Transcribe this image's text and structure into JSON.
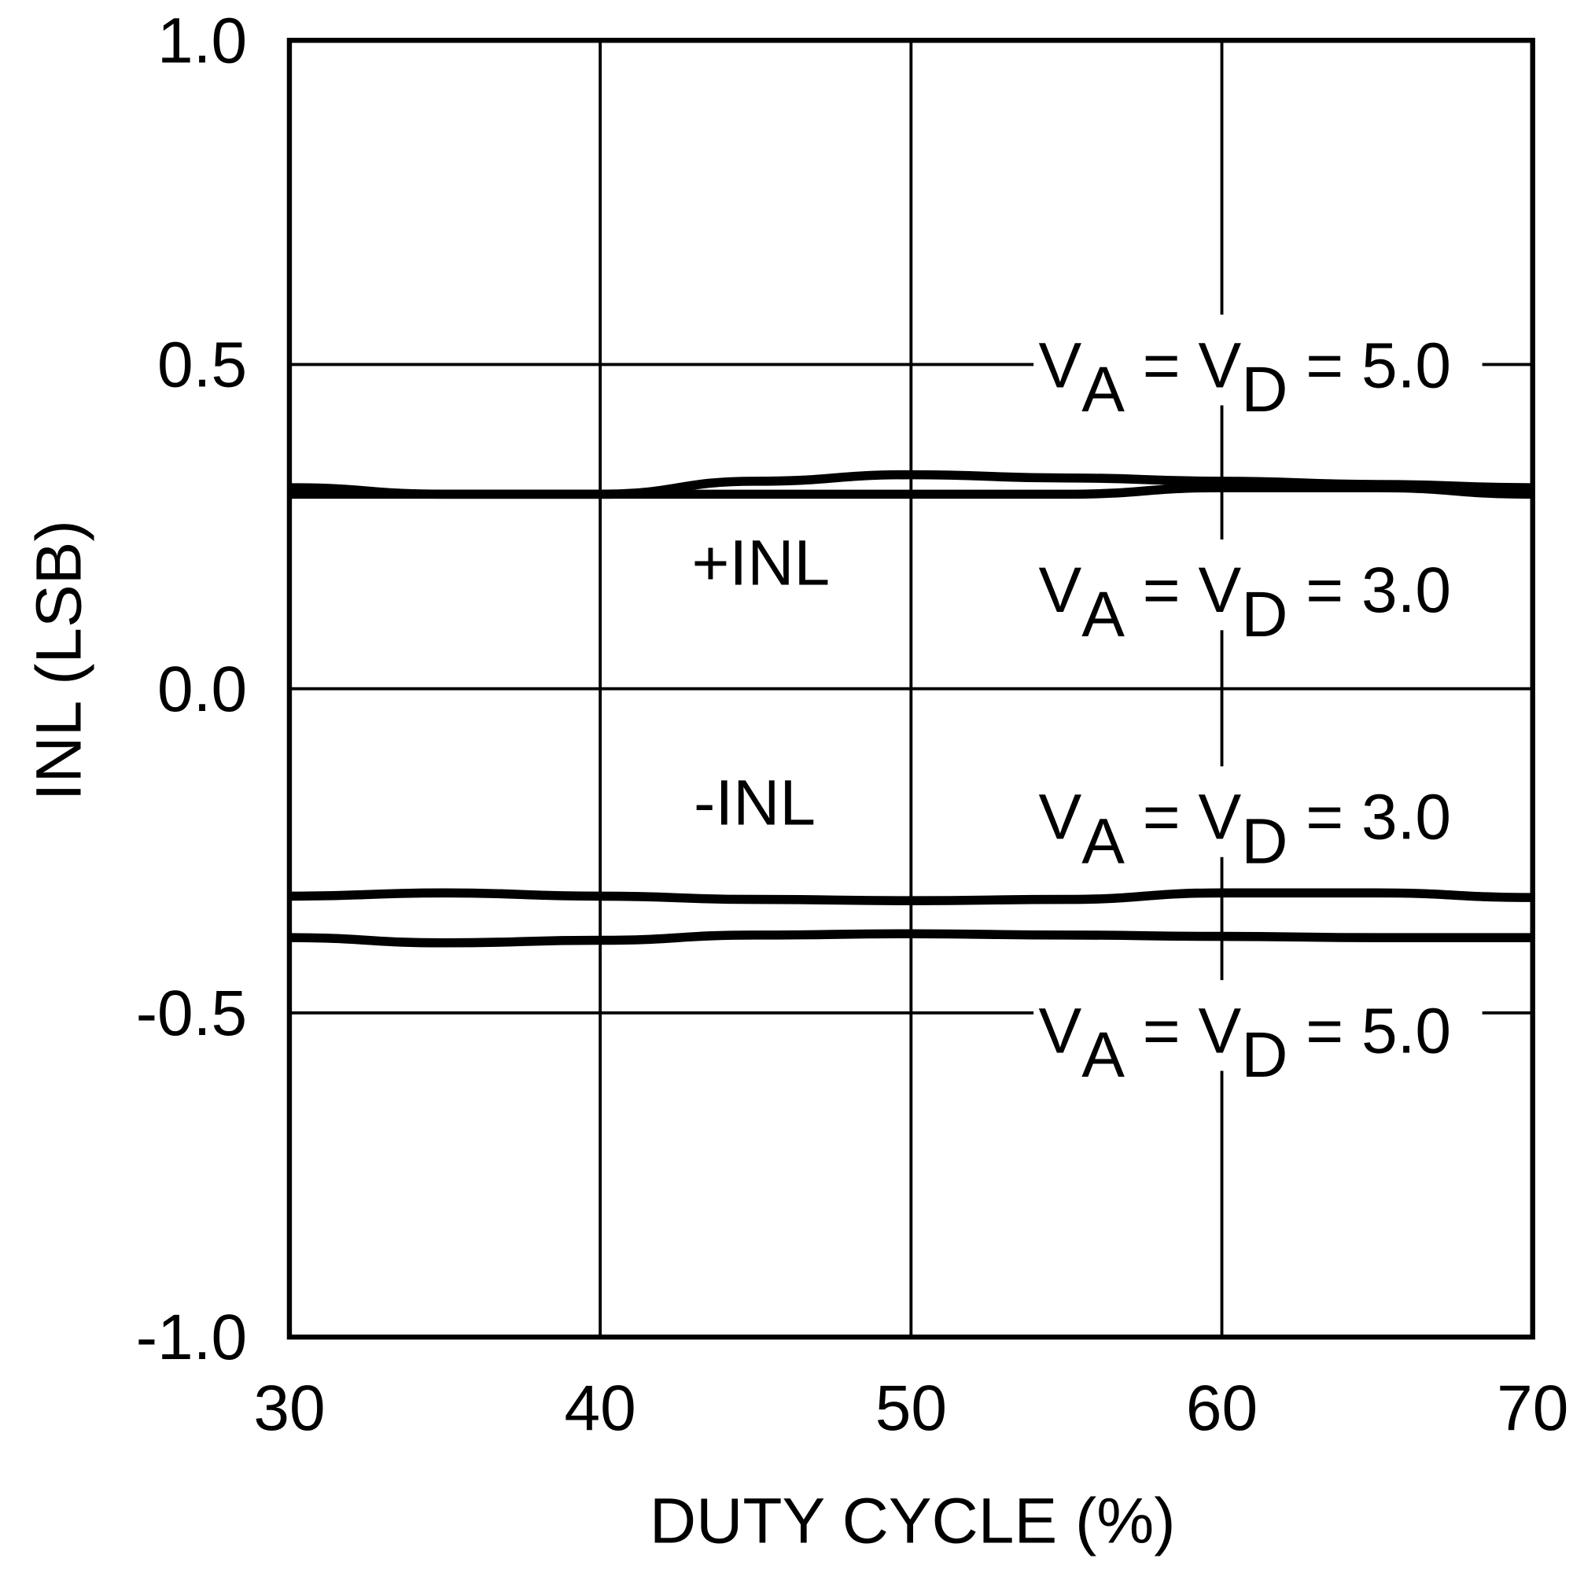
{
  "chart_data": {
    "type": "line",
    "xlabel": "DUTY CYCLE (%)",
    "ylabel": "INL (LSB)",
    "xlim": [
      30,
      70
    ],
    "ylim": [
      -1.0,
      1.0
    ],
    "xticks": [
      "30",
      "40",
      "50",
      "60",
      "70"
    ],
    "yticks": [
      "1.0",
      "0.5",
      "0.0",
      "-0.5",
      "-1.0"
    ],
    "grid": true,
    "x": [
      30,
      35,
      40,
      45,
      50,
      55,
      60,
      65,
      70
    ],
    "series": [
      {
        "name": "+INL, VA = VD = 5.0",
        "values": [
          0.31,
          0.3,
          0.3,
          0.32,
          0.33,
          0.325,
          0.32,
          0.315,
          0.31
        ]
      },
      {
        "name": "+INL, VA = VD = 3.0",
        "values": [
          0.3,
          0.3,
          0.3,
          0.3,
          0.3,
          0.3,
          0.31,
          0.31,
          0.3
        ]
      },
      {
        "name": "-INL, VA = VD = 3.0",
        "values": [
          -0.32,
          -0.315,
          -0.32,
          -0.325,
          -0.327,
          -0.325,
          -0.315,
          -0.315,
          -0.322
        ]
      },
      {
        "name": "-INL, VA = VD = 5.0",
        "values": [
          -0.384,
          -0.392,
          -0.388,
          -0.38,
          -0.378,
          -0.38,
          -0.382,
          -0.384,
          -0.384
        ]
      }
    ],
    "annotations": {
      "plus_inl": "+INL",
      "minus_inl": "-INL",
      "labels": [
        {
          "v": "V",
          "a": "A",
          "eq": " = ",
          "v2": "V",
          "d": "D",
          "val": " = 5.0"
        },
        {
          "v": "V",
          "a": "A",
          "eq": " = ",
          "v2": "V",
          "d": "D",
          "val": " = 3.0"
        },
        {
          "v": "V",
          "a": "A",
          "eq": " = ",
          "v2": "V",
          "d": "D",
          "val": " = 3.0"
        },
        {
          "v": "V",
          "a": "A",
          "eq": " = ",
          "v2": "V",
          "d": "D",
          "val": " = 5.0"
        }
      ]
    }
  }
}
